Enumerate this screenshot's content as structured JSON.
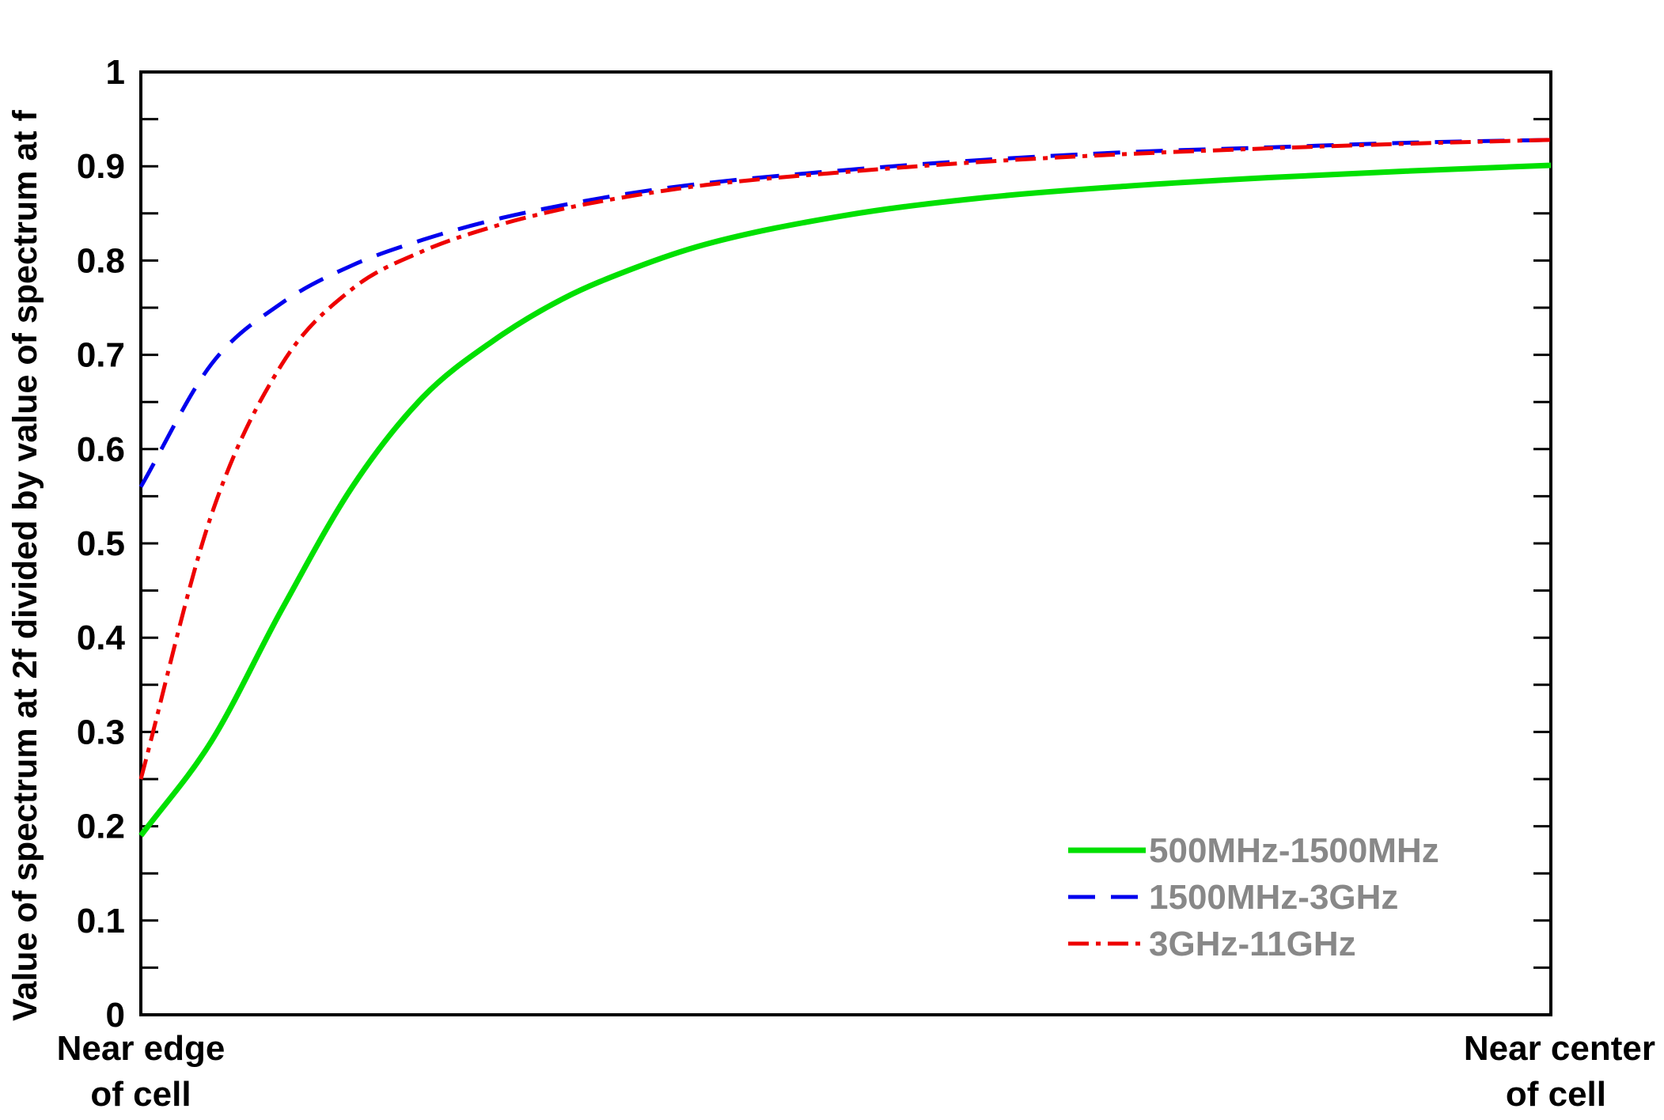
{
  "chart_data": {
    "type": "line",
    "title": "",
    "ylabel": "Value of spectrum at 2f divided by value of spectrum at f",
    "xlabel": "",
    "x_tick_labels": [
      {
        "lines": [
          "Near edge",
          "of cell"
        ]
      },
      {
        "lines": [
          "Near center",
          "of cell"
        ]
      }
    ],
    "xlim": [
      0,
      1
    ],
    "ylim": [
      0,
      1
    ],
    "y_ticks": [
      "0",
      "0.1",
      "0.2",
      "0.3",
      "0.4",
      "0.5",
      "0.6",
      "0.7",
      "0.8",
      "0.9",
      "1"
    ],
    "grid": false,
    "legend_position": "bottom-right",
    "x": [
      0,
      0.05,
      0.1,
      0.15,
      0.2,
      0.25,
      0.3,
      0.35,
      0.4,
      0.5,
      0.6,
      0.7,
      0.8,
      0.9,
      1.0
    ],
    "series": [
      {
        "name": "500MHz-1500MHz",
        "color": "#00e000",
        "dash": "solid",
        "values": [
          0.19,
          0.29,
          0.43,
          0.56,
          0.655,
          0.715,
          0.76,
          0.792,
          0.817,
          0.848,
          0.867,
          0.879,
          0.888,
          0.895,
          0.901
        ]
      },
      {
        "name": "1500MHz-3GHz",
        "color": "#0000ee",
        "dash": "dash",
        "values": [
          0.56,
          0.69,
          0.755,
          0.795,
          0.822,
          0.843,
          0.859,
          0.872,
          0.882,
          0.896,
          0.907,
          0.915,
          0.92,
          0.925,
          0.928
        ]
      },
      {
        "name": "3GHz-11GHz",
        "color": "#ee0000",
        "dash": "dashdot",
        "values": [
          0.25,
          0.53,
          0.69,
          0.77,
          0.81,
          0.836,
          0.855,
          0.869,
          0.88,
          0.894,
          0.905,
          0.913,
          0.919,
          0.924,
          0.928
        ]
      }
    ]
  }
}
